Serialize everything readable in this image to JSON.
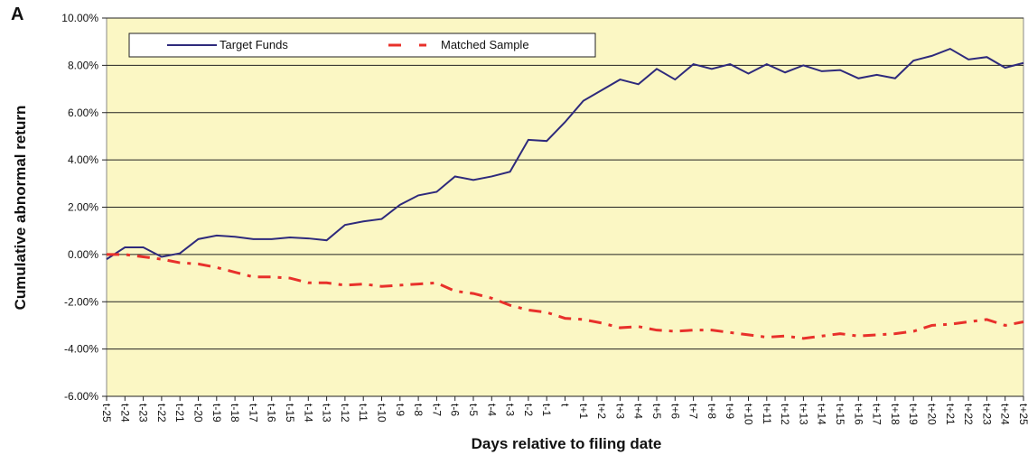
{
  "chart_data": {
    "type": "line",
    "panel_label": "A",
    "x_label": "Days relative to filing date",
    "y_label": "Cumulative abnormal return",
    "categories": [
      "t-25",
      "t-24",
      "t-23",
      "t-22",
      "t-21",
      "t-20",
      "t-19",
      "t-18",
      "t-17",
      "t-16",
      "t-15",
      "t-14",
      "t-13",
      "t-12",
      "t-11",
      "t-10",
      "t-9",
      "t-8",
      "t-7",
      "t-6",
      "t-5",
      "t-4",
      "t-3",
      "t-2",
      "t-1",
      "t",
      "t+1",
      "t+2",
      "t+3",
      "t+4",
      "t+5",
      "t+6",
      "t+7",
      "t+8",
      "t+9",
      "t+10",
      "t+11",
      "t+12",
      "t+13",
      "t+14",
      "t+15",
      "t+16",
      "t+17",
      "t+18",
      "t+19",
      "t+20",
      "t+21",
      "t+22",
      "t+23",
      "t+24",
      "t+25"
    ],
    "series": [
      {
        "name": "Target Funds",
        "color": "#2e2a7c",
        "dashed": false,
        "values": [
          -0.2,
          0.3,
          0.3,
          -0.1,
          0.05,
          0.65,
          0.8,
          0.75,
          0.65,
          0.65,
          0.72,
          0.68,
          0.6,
          1.25,
          1.4,
          1.5,
          2.1,
          2.5,
          2.65,
          3.3,
          3.15,
          3.3,
          3.5,
          4.85,
          4.8,
          5.6,
          6.5,
          6.95,
          7.4,
          7.2,
          7.85,
          7.4,
          8.05,
          7.85,
          8.05,
          7.65,
          8.05,
          7.7,
          8.0,
          7.75,
          7.8,
          7.45,
          7.6,
          7.45,
          8.2,
          8.4,
          8.7,
          8.25,
          8.35,
          7.9,
          8.1
        ]
      },
      {
        "name": "Matched Sample",
        "color": "#e8312b",
        "dashed": true,
        "values": [
          0.0,
          0.0,
          -0.1,
          -0.2,
          -0.35,
          -0.4,
          -0.55,
          -0.75,
          -0.95,
          -0.95,
          -1.0,
          -1.2,
          -1.2,
          -1.3,
          -1.25,
          -1.35,
          -1.3,
          -1.25,
          -1.2,
          -1.55,
          -1.65,
          -1.85,
          -2.15,
          -2.35,
          -2.45,
          -2.7,
          -2.75,
          -2.9,
          -3.1,
          -3.05,
          -3.2,
          -3.25,
          -3.2,
          -3.2,
          -3.3,
          -3.4,
          -3.5,
          -3.45,
          -3.55,
          -3.45,
          -3.35,
          -3.45,
          -3.4,
          -3.35,
          -3.25,
          -3.0,
          -2.95,
          -2.85,
          -2.75,
          -3.0,
          -2.85
        ]
      }
    ],
    "ylim": [
      -6,
      10
    ],
    "yticks": [
      {
        "value": -6,
        "label": "-6.00%"
      },
      {
        "value": -4,
        "label": "-4.00%"
      },
      {
        "value": -2,
        "label": "-2.00%"
      },
      {
        "value": 0,
        "label": "0.00%"
      },
      {
        "value": 2,
        "label": "2.00%"
      },
      {
        "value": 4,
        "label": "4.00%"
      },
      {
        "value": 6,
        "label": "6.00%"
      },
      {
        "value": 8,
        "label": "8.00%"
      },
      {
        "value": 10,
        "label": "10.00%"
      }
    ],
    "grid": true,
    "background": "#fbf7c4",
    "legend": "top"
  }
}
